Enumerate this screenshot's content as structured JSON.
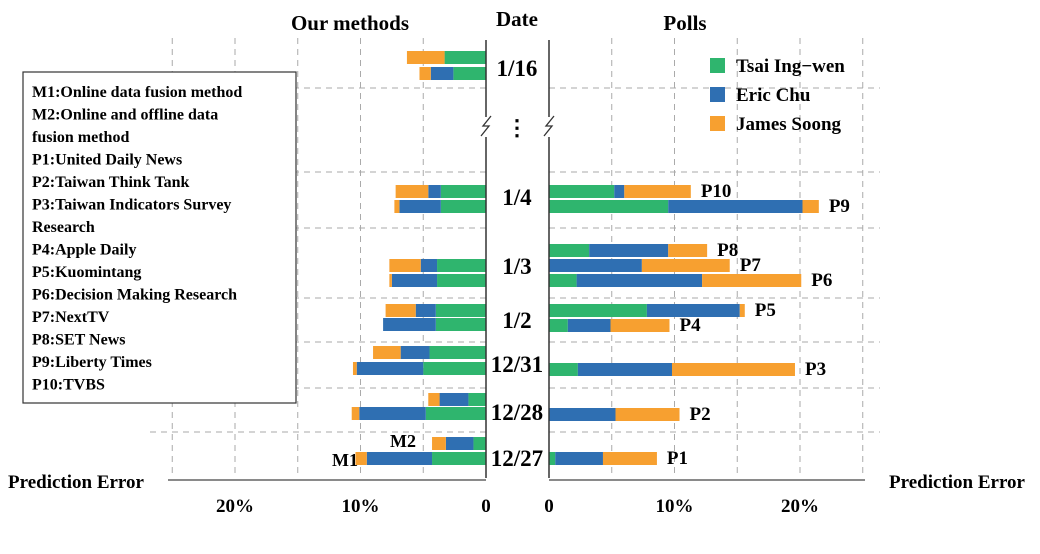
{
  "chart_data": {
    "type": "bar",
    "orientation": "horizontal-stacked",
    "panels": {
      "left_title": "Our methods",
      "center_title": "Date",
      "right_title": "Polls",
      "left_axis_label": "Prediction Error",
      "right_axis_label": "Prediction Error"
    },
    "ticks_left": [
      "20%",
      "10%",
      "0"
    ],
    "ticks_right": [
      "0",
      "10%",
      "20%"
    ],
    "xlim": [
      0,
      25
    ],
    "grid": true,
    "legend_position": "top-right",
    "series_colors": {
      "Tsai Ing-wen": "#2fb56e",
      "Eric Chu": "#2f6fb2",
      "James Soong": "#f7a030"
    },
    "legend": [
      {
        "name": "Tsai Ing−wen",
        "color": "#2fb56e"
      },
      {
        "name": "Eric Chu",
        "color": "#2f6fb2"
      },
      {
        "name": "James Soong",
        "color": "#f7a030"
      }
    ],
    "gap_marker": "⋮",
    "dates": [
      "1/16",
      "1/4",
      "1/3",
      "1/2",
      "12/31",
      "12/28",
      "12/27"
    ],
    "method_labels": {
      "M1": "M1",
      "M2": "M2"
    },
    "methods": [
      {
        "date": "1/16",
        "M2": [
          3.3,
          0.0,
          3.0
        ],
        "M1": [
          2.6,
          1.8,
          0.9
        ]
      },
      {
        "date": "1/4",
        "M2": [
          3.6,
          1.0,
          2.6
        ],
        "M1": [
          3.6,
          3.3,
          0.4
        ]
      },
      {
        "date": "1/3",
        "M2": [
          3.9,
          1.3,
          2.5
        ],
        "M1": [
          3.9,
          3.6,
          0.2
        ]
      },
      {
        "date": "1/2",
        "M2": [
          4.0,
          1.6,
          2.4
        ],
        "M1": [
          4.0,
          4.2,
          0.0
        ]
      },
      {
        "date": "12/31",
        "M2": [
          4.5,
          2.3,
          2.2
        ],
        "M1": [
          5.0,
          5.3,
          0.3
        ]
      },
      {
        "date": "12/28",
        "M2": [
          1.4,
          2.3,
          0.9
        ],
        "M1": [
          4.8,
          5.3,
          0.6
        ]
      },
      {
        "date": "12/27",
        "M2": [
          1.0,
          2.2,
          1.1
        ],
        "M1": [
          4.3,
          5.2,
          0.9
        ]
      }
    ],
    "polls": [
      {
        "name": "P10",
        "date": "1/4",
        "values": [
          5.2,
          0.8,
          5.3
        ]
      },
      {
        "name": "P9",
        "date": "1/4",
        "values": [
          9.5,
          10.7,
          1.3
        ]
      },
      {
        "name": "P8",
        "date": "1/3",
        "values": [
          3.2,
          6.3,
          3.1
        ]
      },
      {
        "name": "P7",
        "date": "1/3",
        "values": [
          0.0,
          7.4,
          7.0
        ]
      },
      {
        "name": "P6",
        "date": "1/3",
        "values": [
          2.2,
          10.0,
          7.9
        ]
      },
      {
        "name": "P5",
        "date": "1/2",
        "values": [
          7.8,
          7.4,
          0.4
        ]
      },
      {
        "name": "P4",
        "date": "1/2",
        "values": [
          1.5,
          3.4,
          4.7
        ]
      },
      {
        "name": "P3",
        "date": "12/31",
        "values": [
          2.3,
          7.5,
          9.8
        ]
      },
      {
        "name": "P2",
        "date": "12/28",
        "values": [
          0.0,
          5.3,
          5.1
        ]
      },
      {
        "name": "P1",
        "date": "12/27",
        "values": [
          0.5,
          3.8,
          4.3
        ]
      }
    ],
    "poll_sources": [
      "M1:Online data fusion method",
      "M2:Online and offline data",
      "fusion method",
      "P1:United Daily News",
      "P2:Taiwan Think Tank",
      "P3:Taiwan Indicators Survey",
      "Research",
      "P4:Apple Daily",
      "P5:Kuomintang",
      "P6:Decision Making Research",
      "P7:NextTV",
      "P8:SET News",
      "P9:Liberty Times",
      "P10:TVBS"
    ]
  }
}
